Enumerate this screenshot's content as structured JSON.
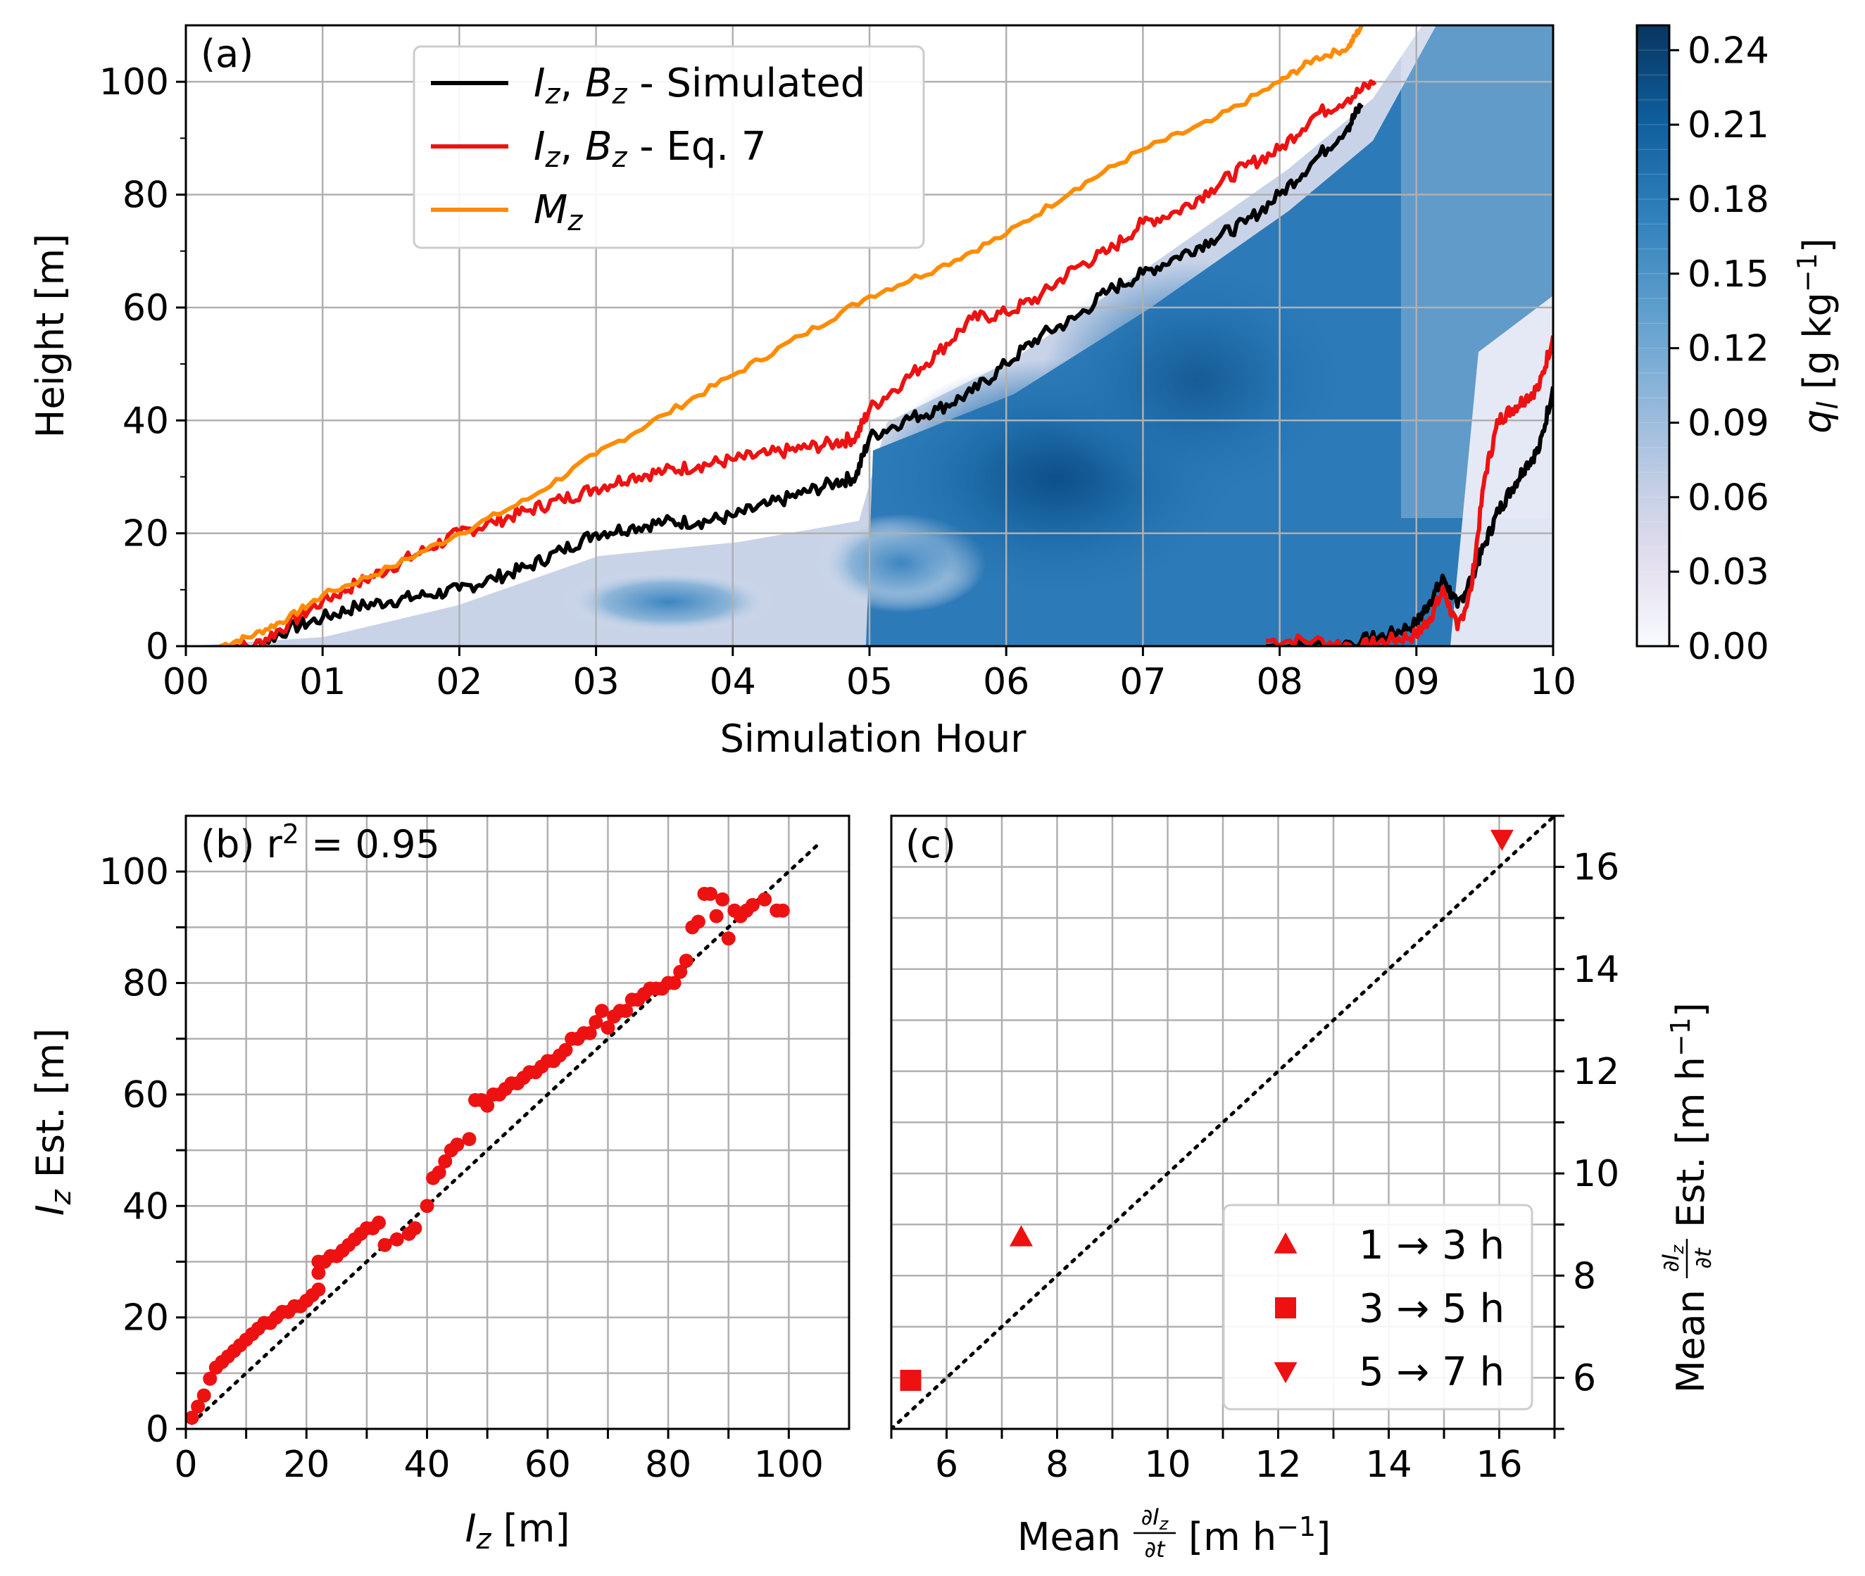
{
  "figure": {
    "panels": [
      "(a)",
      "(b)",
      "(c)"
    ]
  },
  "chart_data": [
    {
      "type": "line",
      "panel_label": "(a)",
      "xlabel": "Simulation Hour",
      "ylabel": "Height [m]",
      "xlim": [
        0,
        10
      ],
      "ylim": [
        0,
        110
      ],
      "x_tick_labels": [
        "00",
        "01",
        "02",
        "03",
        "04",
        "05",
        "06",
        "07",
        "08",
        "09",
        "10"
      ],
      "y_ticks": [
        0,
        20,
        40,
        60,
        80,
        100
      ],
      "grid": true,
      "legend_position": "top-center",
      "background_field": {
        "name": "q_l",
        "cmap": "Blues",
        "approx_top_boundary": {
          "x": [
            0.0,
            1.0,
            2.0,
            3.0,
            4.0,
            4.9,
            5.0,
            6.0,
            7.0,
            8.0,
            8.6,
            9.0,
            10.0
          ],
          "y": [
            0,
            2,
            7,
            17,
            22,
            26,
            40,
            52,
            70,
            85,
            95,
            110,
            110
          ]
        }
      },
      "series": [
        {
          "name": "I_z, B_z - Simulated",
          "legend": "Iz, Bz - Simulated",
          "color": "#000000",
          "x": [
            0.25,
            0.5,
            0.75,
            1.0,
            1.25,
            1.5,
            1.75,
            2.0,
            2.25,
            2.5,
            2.75,
            3.0,
            3.25,
            3.5,
            3.75,
            4.0,
            4.25,
            4.5,
            4.75,
            4.9,
            5.0,
            5.25,
            5.5,
            5.75,
            6.0,
            6.25,
            6.5,
            6.75,
            7.0,
            7.25,
            7.5,
            7.75,
            8.0,
            8.25,
            8.5,
            8.6
          ],
          "y": [
            0,
            0,
            3,
            5,
            7,
            8,
            9,
            10,
            12,
            14,
            17,
            20,
            21,
            22,
            22,
            23,
            25,
            27,
            29,
            30,
            37,
            40,
            42,
            45,
            50,
            55,
            58,
            63,
            66,
            69,
            72,
            75,
            80,
            86,
            92,
            96
          ]
        },
        {
          "name": "I_z, B_z - Simulated (second layer)",
          "color": "#000000",
          "x": [
            7.9,
            8.25,
            8.6,
            8.8,
            9.0,
            9.1,
            9.2,
            9.3,
            9.4,
            9.5,
            9.6,
            9.7,
            9.8,
            9.9,
            10.0
          ],
          "y": [
            0,
            0,
            1,
            2,
            4,
            8,
            12,
            7,
            12,
            18,
            24,
            28,
            32,
            35,
            46
          ]
        },
        {
          "name": "I_z, B_z - Eq. 7",
          "legend": "Iz, Bz - Eq. 7",
          "color": "#ee1111",
          "x": [
            0.25,
            0.5,
            0.75,
            1.0,
            1.25,
            1.5,
            1.75,
            2.0,
            2.25,
            2.5,
            2.75,
            3.0,
            3.25,
            3.5,
            3.75,
            4.0,
            4.25,
            4.5,
            4.75,
            4.9,
            5.0,
            5.25,
            5.5,
            5.75,
            6.0,
            6.25,
            6.5,
            6.75,
            7.0,
            7.25,
            7.5,
            7.75,
            8.0,
            8.25,
            8.5,
            8.7
          ],
          "y": [
            0,
            0,
            4,
            8,
            11,
            14,
            17,
            20,
            22,
            24,
            26,
            28,
            30,
            31,
            32,
            33,
            34,
            35,
            36,
            37,
            42,
            47,
            52,
            58,
            59,
            62,
            67,
            70,
            75,
            77,
            81,
            85,
            88,
            94,
            97,
            100
          ]
        },
        {
          "name": "I_z, B_z - Eq. 7 (second layer)",
          "color": "#ee1111",
          "x": [
            7.9,
            8.25,
            8.6,
            8.8,
            9.0,
            9.1,
            9.2,
            9.3,
            9.4,
            9.5,
            9.6,
            9.7,
            9.8,
            9.9,
            10.0
          ],
          "y": [
            1,
            1,
            0,
            1,
            2,
            5,
            10,
            3,
            10,
            30,
            40,
            42,
            44,
            46,
            55
          ]
        },
        {
          "name": "M_z",
          "legend": "Mz",
          "color": "#ff8c00",
          "x": [
            0.25,
            0.5,
            0.75,
            1.0,
            1.5,
            2.0,
            2.5,
            3.0,
            3.5,
            4.0,
            4.5,
            5.0,
            5.5,
            6.0,
            6.5,
            7.0,
            7.5,
            8.0,
            8.25,
            8.5,
            8.6
          ],
          "y": [
            0,
            2,
            5,
            9,
            14,
            20,
            26,
            34,
            41,
            48,
            55,
            62,
            67,
            73,
            81,
            88,
            93,
            100,
            104,
            106,
            110
          ]
        }
      ],
      "colorbar": {
        "label": "q_l [g kg^-1]",
        "label_text": "ql [g kg−1]",
        "ticks": [
          "0.00",
          "0.03",
          "0.06",
          "0.09",
          "0.12",
          "0.15",
          "0.18",
          "0.21",
          "0.24"
        ],
        "range": [
          0,
          0.25
        ]
      }
    },
    {
      "type": "scatter",
      "panel_label": "(b)",
      "annotation": "(b) r² = 0.95",
      "xlabel": "Iz [m]",
      "ylabel": "Iz Est. [m]",
      "xlim": [
        0,
        110
      ],
      "ylim": [
        0,
        110
      ],
      "x_ticks": [
        0,
        20,
        40,
        60,
        80,
        100
      ],
      "y_ticks": [
        0,
        20,
        40,
        60,
        80,
        100
      ],
      "grid": true,
      "one_to_one_line": true,
      "series": [
        {
          "name": "I_z estimate",
          "color": "#ee1111",
          "x": [
            1,
            2,
            3,
            4,
            5,
            6,
            7,
            8,
            9,
            10,
            11,
            12,
            13,
            14,
            15,
            16,
            17,
            18,
            19,
            20,
            21,
            22,
            22,
            22,
            23,
            24,
            25,
            26,
            27,
            28,
            29,
            30,
            31,
            32,
            33,
            35,
            37,
            38,
            40,
            41,
            42,
            43,
            44,
            45,
            47,
            48,
            49,
            50,
            51,
            52,
            53,
            54,
            55,
            56,
            57,
            58,
            59,
            60,
            61,
            62,
            63,
            64,
            65,
            66,
            67,
            68,
            69,
            70,
            71,
            72,
            73,
            74,
            75,
            76,
            77,
            78,
            79,
            80,
            81,
            82,
            83,
            84,
            85,
            86,
            87,
            88,
            89,
            90,
            91,
            92,
            93,
            94,
            96,
            98,
            99
          ],
          "y": [
            2,
            4,
            6,
            9,
            11,
            12,
            13,
            14,
            15,
            16,
            17,
            18,
            19,
            19,
            20,
            21,
            21,
            22,
            22,
            23,
            24,
            25,
            28,
            30,
            30,
            31,
            31,
            32,
            33,
            34,
            35,
            36,
            36,
            37,
            33,
            34,
            35,
            36,
            40,
            45,
            46,
            48,
            50,
            51,
            52,
            59,
            59,
            58,
            60,
            60,
            61,
            62,
            62,
            63,
            64,
            64,
            65,
            66,
            66,
            67,
            68,
            70,
            70,
            71,
            71,
            73,
            75,
            72,
            74,
            75,
            75,
            77,
            77,
            78,
            79,
            79,
            79,
            80,
            80,
            82,
            84,
            90,
            91,
            96,
            96,
            92,
            95,
            88,
            93,
            92,
            93,
            94,
            95,
            93,
            93
          ]
        }
      ]
    },
    {
      "type": "scatter",
      "panel_label": "(c)",
      "xlabel": "Mean ∂Iz/∂t [m h−1]",
      "ylabel": "Mean ∂Iz/∂t Est. [m h−1]",
      "xlim": [
        5,
        17
      ],
      "ylim": [
        5,
        17
      ],
      "x_ticks": [
        6,
        8,
        10,
        12,
        14,
        16
      ],
      "y_ticks": [
        6,
        8,
        10,
        12,
        14,
        16
      ],
      "grid": true,
      "one_to_one_line": true,
      "legend_position": "bottom-right",
      "series": [
        {
          "name": "1 → 3 h",
          "marker": "triangle-up",
          "color": "#ee1111",
          "x": [
            7.35
          ],
          "y": [
            8.75
          ]
        },
        {
          "name": "3 → 5 h",
          "marker": "square",
          "color": "#ee1111",
          "x": [
            5.35
          ],
          "y": [
            5.95
          ]
        },
        {
          "name": "5 → 7 h",
          "marker": "triangle-down",
          "color": "#ee1111",
          "x": [
            16.05
          ],
          "y": [
            16.55
          ]
        }
      ]
    }
  ],
  "ylabel_parts": {
    "a": "Height [m]",
    "b_sym": "I",
    "b_sub": "z",
    "b_rest": " Est. [m]",
    "c_left": "Mean",
    "c_right": "Est. [m h",
    "c_unit_sup": "−1",
    "c_close": "]"
  },
  "xlabel_parts": {
    "a": "Simulation Hour",
    "b_sym": "I",
    "b_sub": "z",
    "b_rest": " [m]",
    "c_left": "Mean",
    "c_right": "[m h",
    "c_unit_sup": "−1",
    "c_close": "]"
  },
  "legend_a_text": {
    "sim": " - Simulated",
    "eq7": " - Eq. 7",
    "i_sym": "I",
    "b_sym": "B",
    "m_sym": "M",
    "sub": "z",
    "comma": ", "
  },
  "r2_text": {
    "prefix": "(b) r",
    "sup": "2",
    "suffix": " = 0.95"
  },
  "colorbar_label_parts": {
    "sym": "q",
    "sub": "l",
    "unit": " [g kg",
    "sup": "−1",
    "close": "]"
  },
  "frac_parts": {
    "num": "∂I",
    "num_sub": "z",
    "den": "∂t"
  }
}
